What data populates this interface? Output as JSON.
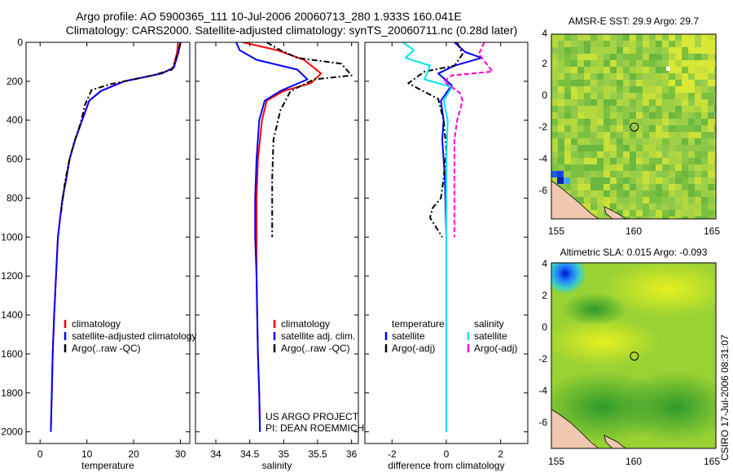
{
  "titles": {
    "line1": "Argo profile: AO 5900365_111 10-Jul-2006 20060713_280 1.933S 160.041E",
    "line2": "Climatology: CARS2000. Satellite-adjusted climatology: synTS_20060711.nc (0.28d later)"
  },
  "colors": {
    "climatology": "#ff0000",
    "satellite": "#0000ff",
    "argo": "#000000",
    "sal_satellite": "#00e5ee",
    "sal_argo": "#ff00cc"
  },
  "chart_data": [
    {
      "id": "temperature",
      "type": "line",
      "xlabel": "temperature",
      "ylabel": "",
      "xlim": [
        -3,
        32
      ],
      "ylim": [
        2060,
        0
      ],
      "xticks": [
        0,
        10,
        20,
        30
      ],
      "yticks": [
        0,
        200,
        400,
        600,
        800,
        1000,
        1200,
        1400,
        1600,
        1800,
        2000
      ],
      "legend": [
        "climatology",
        "satellite-adjusted climatology",
        "Argo(..raw -QC)"
      ],
      "series": [
        {
          "name": "climatology",
          "style": "climatology",
          "x": [
            29.5,
            29.3,
            28.5,
            26,
            22,
            18,
            13,
            10.5,
            9,
            7.5,
            6.3,
            5.6,
            4.8,
            4.3,
            3.8,
            3.4,
            3.0,
            2.7,
            2.5,
            2.3
          ],
          "y": [
            0,
            50,
            130,
            160,
            180,
            200,
            250,
            300,
            400,
            500,
            600,
            700,
            800,
            900,
            1000,
            1200,
            1400,
            1600,
            1800,
            2000
          ]
        },
        {
          "name": "satellite-adjusted climatology",
          "style": "satellite",
          "x": [
            30,
            29.6,
            28.6,
            26,
            22,
            18,
            13,
            10.5,
            9,
            7.5,
            6.3,
            5.6,
            4.8,
            4.3,
            3.8,
            3.4,
            3.0,
            2.7,
            2.5,
            2.3
          ],
          "y": [
            0,
            50,
            130,
            160,
            180,
            200,
            250,
            300,
            400,
            500,
            600,
            700,
            800,
            900,
            1000,
            1200,
            1400,
            1600,
            1800,
            2000
          ]
        },
        {
          "name": "Argo(..raw -QC)",
          "style": "argo",
          "x": [
            30,
            29.4,
            28.2,
            24,
            19,
            15,
            11,
            9.6,
            8.6,
            7.2,
            6.1,
            5.3,
            4.5
          ],
          "y": [
            5,
            60,
            140,
            170,
            195,
            215,
            245,
            320,
            420,
            520,
            620,
            720,
            870
          ]
        }
      ]
    },
    {
      "id": "salinity",
      "type": "line",
      "xlabel": "salinity",
      "ylabel": "",
      "xlim": [
        33.7,
        36.1
      ],
      "ylim": [
        2060,
        0
      ],
      "xticks": [
        34,
        34.5,
        35,
        35.5,
        36
      ],
      "yticks": [
        0,
        200,
        400,
        600,
        800,
        1000,
        1200,
        1400,
        1600,
        1800,
        2000
      ],
      "legend": [
        "climatology",
        "satellite adj. clim.",
        "Argo(..raw -QC)"
      ],
      "annotation": [
        "US ARGO PROJECT",
        "PI: DEAN ROEMMICH"
      ],
      "series": [
        {
          "name": "climatology",
          "style": "climatology",
          "x": [
            34.4,
            34.9,
            35.3,
            35.55,
            35.4,
            35.0,
            34.75,
            34.68,
            34.62,
            34.6,
            34.6,
            34.6,
            34.61,
            34.62,
            34.64,
            34.65
          ],
          "y": [
            0,
            40,
            90,
            160,
            210,
            250,
            300,
            400,
            600,
            800,
            1000,
            1200,
            1400,
            1600,
            1800,
            2000
          ]
        },
        {
          "name": "satellite adj. clim.",
          "style": "satellite",
          "x": [
            34.3,
            34.35,
            34.6,
            35.2,
            35.35,
            34.95,
            34.72,
            34.64,
            34.6,
            34.58,
            34.58,
            34.6,
            34.61,
            34.62,
            34.64,
            34.65
          ],
          "y": [
            0,
            40,
            90,
            140,
            190,
            250,
            300,
            400,
            600,
            800,
            1000,
            1200,
            1400,
            1600,
            1800,
            2000
          ]
        },
        {
          "name": "Argo(..raw -QC)",
          "style": "argo",
          "x": [
            34.75,
            34.95,
            35.2,
            35.85,
            36.0,
            35.45,
            35.1,
            34.95,
            34.85,
            34.83,
            34.83
          ],
          "y": [
            0,
            40,
            80,
            110,
            170,
            190,
            250,
            350,
            500,
            700,
            1000
          ]
        }
      ]
    },
    {
      "id": "difference",
      "type": "line",
      "xlabel": "difference from climatology",
      "ylabel": "",
      "xlim": [
        -3,
        3
      ],
      "ylim": [
        2060,
        0
      ],
      "xticks": [
        -2,
        0,
        2
      ],
      "yticks": [
        0,
        200,
        400,
        600,
        800,
        1000,
        1200,
        1400,
        1600,
        1800,
        2000
      ],
      "legend_temperature": {
        "heading": "temperature",
        "items": [
          "satellite",
          "Argo(-adj)"
        ]
      },
      "legend_salinity": {
        "heading": "salinity",
        "items": [
          "satellite",
          "Argo(-adj)"
        ]
      },
      "series": [
        {
          "name": "temperature satellite",
          "style": "satellite",
          "x": [
            0.3,
            0.7,
            1.3,
            0.3,
            -0.3,
            0.2,
            -0.2,
            -0.1,
            -0.15,
            -0.05,
            0,
            0,
            0,
            0
          ],
          "y": [
            0,
            50,
            80,
            120,
            160,
            220,
            300,
            400,
            500,
            700,
            1000,
            1400,
            1800,
            2000
          ]
        },
        {
          "name": "temperature Argo(-adj)",
          "style": "argo",
          "x": [
            0.4,
            0.6,
            0.3,
            -0.8,
            -1.4,
            -1.0,
            -0.3,
            -0.1,
            0,
            -0.1,
            -0.2,
            -0.5,
            -0.6,
            -0.15
          ],
          "y": [
            0,
            60,
            120,
            150,
            210,
            240,
            290,
            400,
            550,
            700,
            800,
            850,
            900,
            1000
          ]
        },
        {
          "name": "salinity satellite",
          "style": "sal_satellite",
          "x": [
            -1.6,
            -1.2,
            -1.5,
            -0.6,
            -0.8,
            0.2,
            -0.1,
            0.05,
            0,
            0,
            0,
            0
          ],
          "y": [
            0,
            40,
            80,
            120,
            190,
            230,
            300,
            400,
            600,
            1000,
            1500,
            2000
          ]
        },
        {
          "name": "salinity Argo(-adj)",
          "style": "sal_argo",
          "x": [
            1.4,
            1.2,
            1.7,
            0.2,
            -0.1,
            0.5,
            0.6,
            0.4,
            0.3,
            0.3,
            0.3
          ],
          "y": [
            0,
            60,
            150,
            170,
            200,
            260,
            300,
            400,
            500,
            700,
            1000
          ]
        }
      ]
    }
  ],
  "maps": {
    "sst": {
      "title": "AMSR-E SST: 29.9 Argo: 29.7",
      "xticks": [
        "155",
        "160",
        "165"
      ],
      "yticks": [
        "4",
        "2",
        "0",
        "-2",
        "-4",
        "-6"
      ],
      "lon_range": [
        155,
        165
      ],
      "lat_range": [
        -7.8,
        4
      ],
      "argo_position": {
        "lon": 160.041,
        "lat": -1.933
      }
    },
    "sla": {
      "title": "Altimetric SLA: 0.015 Argo: -0.093",
      "xticks": [
        "155",
        "160",
        "165"
      ],
      "yticks": [
        "4",
        "2",
        "0",
        "-2",
        "-4",
        "-6"
      ],
      "lon_range": [
        155,
        165
      ],
      "lat_range": [
        -7.8,
        4
      ],
      "argo_position": {
        "lon": 160.041,
        "lat": -1.933
      }
    }
  },
  "footer": {
    "vertical_stamp": "CSIRO 17-Jul-2006 08:31:07"
  }
}
